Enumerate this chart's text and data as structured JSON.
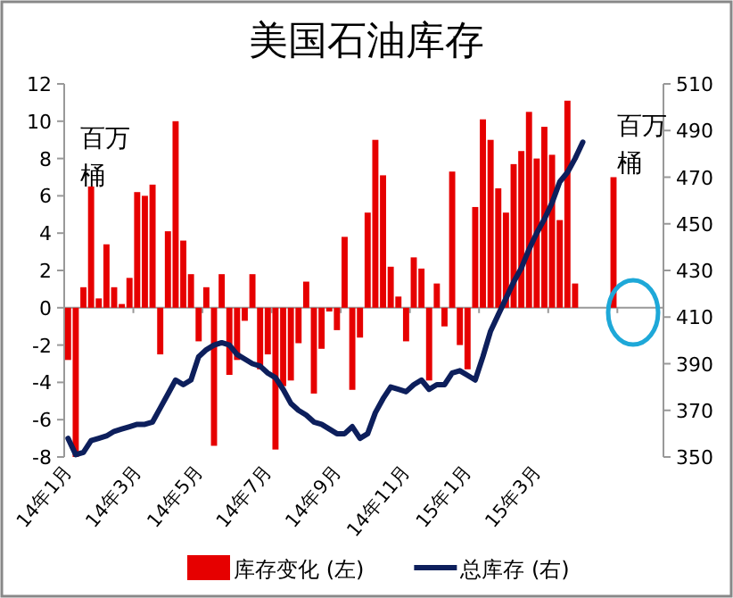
{
  "chart_data": {
    "type": "bar",
    "title": "美国石油库存",
    "ylabel": "百万桶",
    "y2label": "百万桶",
    "categories": [
      "14年1月",
      null,
      null,
      null,
      null,
      null,
      null,
      null,
      null,
      "14年3月",
      null,
      null,
      null,
      null,
      null,
      null,
      null,
      "14年5月",
      null,
      null,
      null,
      null,
      null,
      null,
      null,
      null,
      "14年7月",
      null,
      null,
      null,
      null,
      null,
      null,
      null,
      null,
      "14年9月",
      null,
      null,
      null,
      null,
      null,
      null,
      null,
      null,
      "14年11月",
      null,
      null,
      null,
      null,
      null,
      null,
      null,
      "15年1月",
      null,
      null,
      null,
      null,
      null,
      null,
      null,
      null,
      "15年3月",
      null,
      null,
      null,
      null,
      null,
      null,
      null,
      null,
      null,
      null,
      null,
      null,
      null,
      null,
      null,
      null
    ],
    "series": [
      {
        "name": "库存变化 (左)",
        "color": "#e60000",
        "values": [
          -2.8,
          -8,
          1.1,
          6.5,
          0.5,
          3.4,
          1.1,
          0.2,
          1.6,
          6.2,
          6,
          6.6,
          -2.5,
          4.1,
          10,
          3.6,
          1.8,
          -1.8,
          1.1,
          -7.4,
          1.8,
          -3.6,
          -2.8,
          -0.7,
          1.8,
          -3.3,
          -2.5,
          -7.6,
          -4.2,
          -3.9,
          -1.9,
          1.4,
          -4.6,
          -2.2,
          -0.2,
          -1.2,
          3.8,
          -4.4,
          -1.6,
          5.1,
          9,
          7.1,
          2.2,
          0.6,
          -1.8,
          2.7,
          2.1,
          -3.9,
          1.3,
          -1,
          7.3,
          -2,
          -3.3,
          5.4,
          10.1,
          9,
          6.4,
          5.1,
          7.7,
          8.4,
          10.5,
          8,
          9.7,
          8.2,
          4.7,
          11.1,
          1.3,
          null,
          null,
          null,
          null,
          7,
          null,
          null,
          null,
          null,
          null,
          null
        ]
      },
      {
        "name": "总库存 (右)",
        "type": "line",
        "axis": "y2",
        "color": "#0d1f5c",
        "values": [
          358,
          351,
          352,
          357,
          358,
          359,
          361,
          362,
          363,
          364,
          364,
          365,
          371,
          377,
          383,
          381,
          383,
          393,
          396,
          398,
          399,
          398,
          394,
          392,
          390,
          389,
          386,
          384,
          379,
          373,
          370,
          368,
          365,
          364,
          362,
          360,
          360,
          363,
          358,
          360,
          369,
          375,
          380,
          379,
          378,
          381,
          383,
          379,
          381,
          381,
          386,
          387,
          385,
          383,
          393,
          404,
          411,
          418,
          425,
          431,
          439,
          446,
          452,
          459,
          468,
          472,
          478,
          485,
          null,
          null,
          null,
          null,
          null,
          null,
          null,
          null,
          null,
          null
        ]
      }
    ],
    "ylim": [
      -8,
      12
    ],
    "yticks": [
      -8,
      -6,
      -4,
      -2,
      0,
      2,
      4,
      6,
      8,
      10,
      12
    ],
    "y2lim": [
      350,
      510
    ],
    "y2ticks": [
      350,
      370,
      390,
      410,
      430,
      450,
      470,
      490,
      510
    ],
    "legend": "bottom"
  }
}
